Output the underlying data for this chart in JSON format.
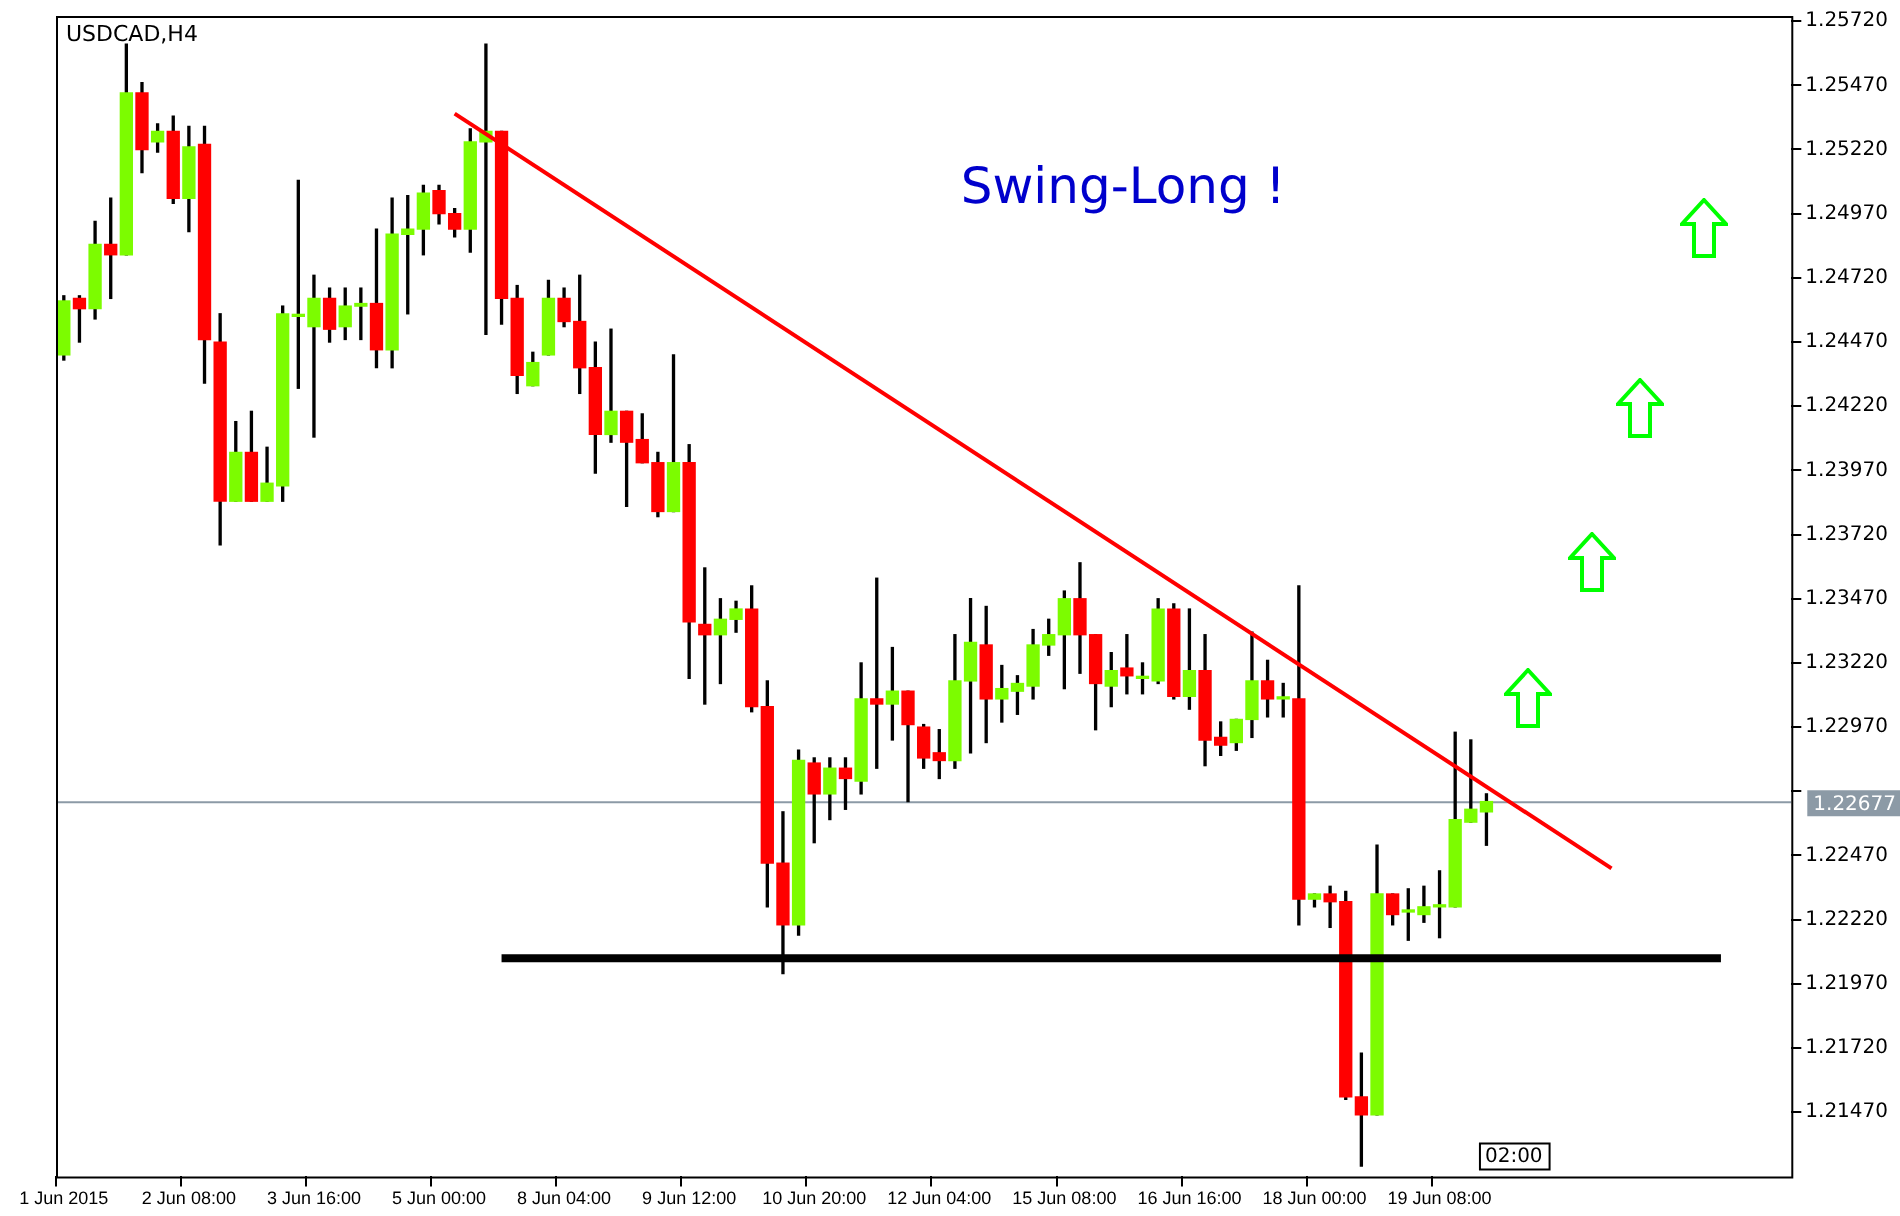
{
  "chart_data": {
    "type": "candlestick",
    "title": "USDCAD,H4",
    "categories": [
      "1 Jun 2015",
      null,
      null,
      null,
      null,
      null,
      null,
      null,
      "2 Jun 08:00",
      null,
      null,
      null,
      null,
      null,
      null,
      null,
      "3 Jun 16:00",
      null,
      null,
      null,
      null,
      null,
      null,
      null,
      "5 Jun 00:00",
      null,
      null,
      null,
      null,
      null,
      null,
      null,
      "8 Jun 04:00",
      null,
      null,
      null,
      null,
      null,
      null,
      null,
      "9 Jun 12:00",
      null,
      null,
      null,
      null,
      null,
      null,
      null,
      "10 Jun 20:00",
      null,
      null,
      null,
      null,
      null,
      null,
      null,
      "12 Jun 04:00",
      null,
      null,
      null,
      null,
      null,
      null,
      null,
      "15 Jun 08:00",
      null,
      null,
      null,
      null,
      null,
      null,
      null,
      "16 Jun 16:00",
      null,
      null,
      null,
      null,
      null,
      null,
      null,
      "18 Jun 00:00",
      null,
      null,
      null,
      null,
      null,
      null,
      null,
      "19 Jun 08:00",
      null,
      null,
      null,
      null,
      null,
      null,
      null,
      null,
      null,
      null,
      null,
      null,
      null,
      null,
      null,
      null,
      null,
      null,
      null,
      null,
      null,
      null
    ],
    "ohlc": [
      [
        1.2442,
        1.2465,
        1.244,
        1.2463
      ],
      [
        1.2464,
        1.2465,
        1.2447,
        1.246
      ],
      [
        1.246,
        1.2494,
        1.2456,
        1.2485
      ],
      [
        1.2485,
        1.2503,
        1.2464,
        1.2481
      ],
      [
        1.2481,
        1.2563,
        1.2481,
        1.2544
      ],
      [
        1.2544,
        1.2548,
        1.2513,
        1.2522
      ],
      [
        1.2525,
        1.2532,
        1.2521,
        1.2529
      ],
      [
        1.2529,
        1.2535,
        1.2501,
        1.2503
      ],
      [
        1.2503,
        1.2531,
        1.249,
        1.2523
      ],
      [
        1.2524,
        1.2531,
        1.2431,
        1.2448
      ],
      [
        1.2447,
        1.2458,
        1.2368,
        1.2385
      ],
      [
        1.2385,
        1.2416,
        1.2385,
        1.2404
      ],
      [
        1.2404,
        1.242,
        1.2385,
        1.2385
      ],
      [
        1.2385,
        1.2406,
        1.2385,
        1.2392
      ],
      [
        1.2391,
        1.2461,
        1.2385,
        1.2458
      ],
      [
        1.2457,
        1.251,
        1.2429,
        1.2457
      ],
      [
        1.2453,
        1.2473,
        1.241,
        1.2464
      ],
      [
        1.2464,
        1.2468,
        1.2447,
        1.2452
      ],
      [
        1.2453,
        1.2468,
        1.2448,
        1.2461
      ],
      [
        1.2461,
        1.2468,
        1.2448,
        1.2462
      ],
      [
        1.2462,
        1.2491,
        1.2437,
        1.2444
      ],
      [
        1.2444,
        1.2503,
        1.2437,
        1.2489
      ],
      [
        1.2489,
        1.2504,
        1.2458,
        1.2491
      ],
      [
        1.2491,
        1.2508,
        1.2481,
        1.2505
      ],
      [
        1.2506,
        1.2508,
        1.2493,
        1.2497
      ],
      [
        1.2497,
        1.2499,
        1.2488,
        1.2491
      ],
      [
        1.2491,
        1.253,
        1.2482,
        1.2525
      ],
      [
        1.2525,
        1.2563,
        1.245,
        1.2529
      ],
      [
        1.2529,
        1.2529,
        1.2454,
        1.2464
      ],
      [
        1.2464,
        1.2469,
        1.2427,
        1.2434
      ],
      [
        1.243,
        1.2443,
        1.243,
        1.2439
      ],
      [
        1.2442,
        1.2471,
        1.2442,
        1.2464
      ],
      [
        1.2464,
        1.2468,
        1.2453,
        1.2455
      ],
      [
        1.2455,
        1.2473,
        1.2427,
        1.2437
      ],
      [
        1.2437,
        1.2447,
        1.2396,
        1.2411
      ],
      [
        1.2411,
        1.2452,
        1.2408,
        1.242
      ],
      [
        1.242,
        1.242,
        1.2383,
        1.2408
      ],
      [
        1.2409,
        1.2419,
        1.24,
        1.24
      ],
      [
        1.24,
        1.2404,
        1.2379,
        1.2381
      ],
      [
        1.2381,
        1.2442,
        1.2381,
        1.24
      ],
      [
        1.24,
        1.2407,
        1.2316,
        1.2338
      ],
      [
        1.2337,
        1.2359,
        1.2306,
        1.2333
      ],
      [
        1.2333,
        1.2347,
        1.2314,
        1.2339
      ],
      [
        1.2339,
        1.2346,
        1.2334,
        1.2343
      ],
      [
        1.2343,
        1.2352,
        1.2303,
        1.2305
      ],
      [
        1.2305,
        1.2315,
        1.2227,
        1.2244
      ],
      [
        1.2244,
        1.2264,
        1.2201,
        1.222
      ],
      [
        1.222,
        1.2288,
        1.2216,
        1.2284
      ],
      [
        1.2283,
        1.2285,
        1.2252,
        1.2271
      ],
      [
        1.2271,
        1.2285,
        1.2261,
        1.2281
      ],
      [
        1.2281,
        1.2285,
        1.2265,
        1.2277
      ],
      [
        1.2276,
        1.2322,
        1.2271,
        1.2308
      ],
      [
        1.2308,
        1.2355,
        1.2281,
        1.2306
      ],
      [
        1.2306,
        1.2328,
        1.2292,
        1.2311
      ],
      [
        1.2311,
        1.2311,
        1.2268,
        1.2298
      ],
      [
        1.2297,
        1.2298,
        1.2281,
        1.2285
      ],
      [
        1.2287,
        1.2296,
        1.2277,
        1.2284
      ],
      [
        1.2284,
        1.2333,
        1.2281,
        1.2315
      ],
      [
        1.2315,
        1.2347,
        1.2287,
        1.233
      ],
      [
        1.2329,
        1.2344,
        1.2291,
        1.2308
      ],
      [
        1.2308,
        1.2321,
        1.2299,
        1.2312
      ],
      [
        1.2311,
        1.2317,
        1.2302,
        1.2314
      ],
      [
        1.2313,
        1.2335,
        1.2308,
        1.2329
      ],
      [
        1.2329,
        1.2339,
        1.2325,
        1.2333
      ],
      [
        1.2333,
        1.235,
        1.2312,
        1.2347
      ],
      [
        1.2347,
        1.2361,
        1.2318,
        1.2333
      ],
      [
        1.2333,
        1.2333,
        1.2296,
        1.2314
      ],
      [
        1.2313,
        1.2326,
        1.2305,
        1.2319
      ],
      [
        1.232,
        1.2333,
        1.231,
        1.2317
      ],
      [
        1.2316,
        1.2322,
        1.231,
        1.2316
      ],
      [
        1.2315,
        1.2347,
        1.2314,
        1.2343
      ],
      [
        1.2343,
        1.2345,
        1.2308,
        1.2309
      ],
      [
        1.2309,
        1.2343,
        1.2304,
        1.2319
      ],
      [
        1.2319,
        1.2333,
        1.2282,
        1.2292
      ],
      [
        1.2293,
        1.2299,
        1.2286,
        1.229
      ],
      [
        1.2291,
        1.23,
        1.2288,
        1.23
      ],
      [
        1.23,
        1.2334,
        1.2293,
        1.2315
      ],
      [
        1.2315,
        1.2323,
        1.2301,
        1.2308
      ],
      [
        1.2308,
        1.2314,
        1.2301,
        1.2308
      ],
      [
        1.2308,
        1.2352,
        1.222,
        1.223
      ],
      [
        1.223,
        1.2232,
        1.2227,
        1.2232
      ],
      [
        1.2232,
        1.2235,
        1.2219,
        1.2229
      ],
      [
        1.2229,
        1.2233,
        1.2152,
        1.2153
      ],
      [
        1.2153,
        1.217,
        1.2126,
        1.2146
      ],
      [
        1.2146,
        1.2251,
        1.2146,
        1.2232
      ],
      [
        1.2232,
        1.2232,
        1.222,
        1.2224
      ],
      [
        1.2225,
        1.2234,
        1.2214,
        1.2225
      ],
      [
        1.2224,
        1.2235,
        1.2221,
        1.2227
      ],
      [
        1.2227,
        1.2241,
        1.2215,
        1.2227
      ],
      [
        1.2227,
        1.2295,
        1.2227,
        1.2261
      ],
      [
        1.226,
        1.2292,
        1.226,
        1.2265
      ],
      [
        1.2264,
        1.2271,
        1.2251,
        1.2268
      ],
      null,
      null,
      null,
      null,
      null,
      null,
      null,
      null,
      null,
      null,
      null,
      null,
      null,
      null,
      null,
      null,
      null,
      null,
      null
    ],
    "colors": [
      "#7cfc00",
      "#ff0000",
      "#7cfc00",
      "#ff0000",
      "#7cfc00",
      "#ff0000",
      "#7cfc00",
      "#ff0000",
      "#7cfc00",
      "#ff0000",
      "#ff0000",
      "#7cfc00",
      "#ff0000",
      "#7cfc00",
      "#7cfc00",
      "#7cfc00",
      "#7cfc00",
      "#ff0000",
      "#7cfc00",
      "#7cfc00",
      "#ff0000",
      "#7cfc00",
      "#7cfc00",
      "#7cfc00",
      "#ff0000",
      "#ff0000",
      "#7cfc00",
      "#7cfc00",
      "#ff0000",
      "#ff0000",
      "#7cfc00",
      "#7cfc00",
      "#ff0000",
      "#ff0000",
      "#ff0000",
      "#7cfc00",
      "#ff0000",
      "#ff0000",
      "#ff0000",
      "#7cfc00",
      "#ff0000",
      "#ff0000",
      "#7cfc00",
      "#7cfc00",
      "#ff0000",
      "#ff0000",
      "#ff0000",
      "#7cfc00",
      "#ff0000",
      "#7cfc00",
      "#ff0000",
      "#7cfc00",
      "#ff0000",
      "#7cfc00",
      "#ff0000",
      "#ff0000",
      "#ff0000",
      "#7cfc00",
      "#7cfc00",
      "#ff0000",
      "#7cfc00",
      "#7cfc00",
      "#7cfc00",
      "#7cfc00",
      "#7cfc00",
      "#ff0000",
      "#ff0000",
      "#7cfc00",
      "#ff0000",
      "#7cfc00",
      "#7cfc00",
      "#ff0000",
      "#7cfc00",
      "#ff0000",
      "#ff0000",
      "#7cfc00",
      "#7cfc00",
      "#ff0000",
      "#7cfc00",
      "#ff0000",
      "#7cfc00",
      "#ff0000",
      "#ff0000",
      "#ff0000",
      "#7cfc00",
      "#ff0000",
      "#7cfc00",
      "#7cfc00",
      "#7cfc00",
      "#7cfc00",
      "#7cfc00",
      "#7cfc00",
      null,
      null,
      null,
      null,
      null,
      null,
      null,
      null,
      null,
      null,
      null,
      null,
      null,
      null,
      null,
      null,
      null,
      null,
      null
    ],
    "series": [
      {
        "type": "line",
        "color": "#ff0000",
        "values": [
          null,
          null,
          null,
          null,
          null,
          null,
          null,
          null,
          null,
          null,
          null,
          null,
          null,
          null,
          null,
          null,
          null,
          null,
          null,
          null,
          null,
          null,
          null,
          null,
          null,
          1.2536,
          null,
          null,
          null,
          null,
          null,
          null,
          null,
          null,
          null,
          null,
          null,
          null,
          null,
          null,
          null,
          null,
          null,
          null,
          null,
          null,
          null,
          null,
          null,
          null,
          null,
          null,
          null,
          null,
          null,
          null,
          null,
          null,
          null,
          null,
          null,
          null,
          null,
          null,
          null,
          null,
          null,
          null,
          null,
          null,
          null,
          null,
          null,
          null,
          null,
          null,
          null,
          null,
          null,
          null,
          null,
          null,
          null,
          null,
          null,
          null,
          null,
          null,
          null,
          null,
          null,
          null,
          null,
          null,
          null,
          null,
          null,
          null,
          null,
          1.2242,
          null,
          null,
          null,
          null,
          null,
          null,
          null,
          null,
          null,
          null,
          null
        ]
      },
      {
        "type": "line",
        "color": "#000000",
        "values": [
          null,
          null,
          null,
          null,
          null,
          null,
          null,
          null,
          null,
          null,
          null,
          null,
          null,
          null,
          null,
          null,
          null,
          null,
          null,
          null,
          null,
          null,
          null,
          null,
          null,
          null,
          null,
          null,
          1.2207,
          null,
          null,
          null,
          null,
          null,
          null,
          null,
          null,
          null,
          null,
          null,
          null,
          null,
          null,
          null,
          null,
          null,
          null,
          null,
          null,
          null,
          null,
          null,
          null,
          null,
          null,
          null,
          null,
          null,
          null,
          null,
          null,
          null,
          null,
          null,
          null,
          null,
          null,
          null,
          null,
          null,
          null,
          null,
          null,
          null,
          null,
          null,
          null,
          null,
          null,
          null,
          null,
          null,
          null,
          null,
          null,
          null,
          null,
          null,
          null,
          null,
          null,
          null,
          null,
          null,
          null,
          null,
          null,
          null,
          null,
          null,
          null,
          null,
          null,
          null,
          null,
          null,
          1.2207,
          null,
          null,
          null,
          null
        ]
      }
    ],
    "ylim": [
      1.2122,
      1.2574
    ],
    "yticks": [
      {
        "value": 1.2572,
        "label": "1.25720"
      },
      {
        "value": 1.2547,
        "label": "1.25470"
      },
      {
        "value": 1.2522,
        "label": "1.25220"
      },
      {
        "value": 1.2497,
        "label": "1.24970"
      },
      {
        "value": 1.2472,
        "label": "1.24720"
      },
      {
        "value": 1.2447,
        "label": "1.24470"
      },
      {
        "value": 1.2422,
        "label": "1.24220"
      },
      {
        "value": 1.2397,
        "label": "1.23970"
      },
      {
        "value": 1.2372,
        "label": "1.23720"
      },
      {
        "value": 1.2347,
        "label": "1.23470"
      },
      {
        "value": 1.2322,
        "label": "1.23220"
      },
      {
        "value": 1.2297,
        "label": "1.22970"
      },
      {
        "value": 1.2272,
        "label": null
      },
      {
        "value": 1.2247,
        "label": "1.22470"
      },
      {
        "value": 1.2222,
        "label": "1.22220"
      },
      {
        "value": 1.2197,
        "label": "1.21970"
      },
      {
        "value": 1.2172,
        "label": "1.21720"
      },
      {
        "value": 1.2147,
        "label": "1.21470"
      }
    ],
    "ref_lines": [
      {
        "axis": "y",
        "value": 1.22677,
        "label": "1.22677",
        "color": "#8c9aa6"
      }
    ],
    "annotations": [
      "Swing-Long !",
      "02:00"
    ],
    "grid": false,
    "legend": false
  }
}
